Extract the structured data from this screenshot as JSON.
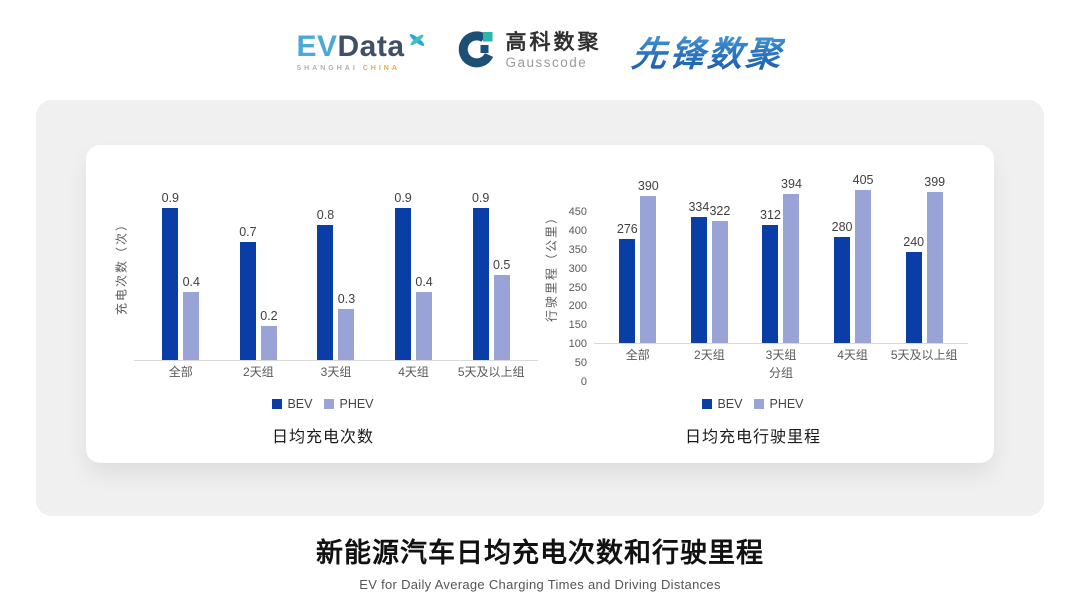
{
  "header": {
    "evdata": {
      "ev": "EV",
      "data": "Data",
      "sub_left": "SHANGHAI",
      "sub_right": "CHINA"
    },
    "gausscode": {
      "cn": "高科数聚",
      "en": "Gausscode"
    },
    "pioneer": {
      "text": "先锋数聚"
    }
  },
  "colors": {
    "bev": "#0b3da6",
    "phev": "#99a3d6",
    "panel_bg": "#f0f0f0",
    "axis_line": "#d9d9d9",
    "tick_text": "#595959",
    "value_text": "#404040"
  },
  "chart_data": [
    {
      "type": "bar",
      "title": "日均充电次数",
      "ylabel": "充电次数（次）",
      "xlabel": "",
      "categories": [
        "全部",
        "2天组",
        "3天组",
        "4天组",
        "5天及以上组"
      ],
      "series": [
        {
          "name": "BEV",
          "color": "#0b3da6",
          "values": [
            0.9,
            0.7,
            0.8,
            0.9,
            0.9
          ]
        },
        {
          "name": "PHEV",
          "color": "#99a3d6",
          "values": [
            0.4,
            0.2,
            0.3,
            0.4,
            0.5
          ]
        }
      ],
      "ylim": [
        0,
        1.0
      ],
      "yticks": [],
      "grid": false,
      "legend_position": "bottom",
      "data_labels": true
    },
    {
      "type": "bar",
      "title": "日均充电行驶里程",
      "ylabel": "行驶里程（公里）",
      "xlabel": "分组",
      "categories": [
        "全部",
        "2天组",
        "3天组",
        "4天组",
        "5天及以上组"
      ],
      "series": [
        {
          "name": "BEV",
          "color": "#0b3da6",
          "values": [
            276,
            334,
            312,
            280,
            240
          ]
        },
        {
          "name": "PHEV",
          "color": "#99a3d6",
          "values": [
            390,
            322,
            394,
            405,
            399
          ]
        }
      ],
      "ylim": [
        0,
        450
      ],
      "yticks": [
        0,
        50,
        100,
        150,
        200,
        250,
        300,
        350,
        400,
        450
      ],
      "grid": false,
      "legend_position": "bottom",
      "data_labels": true
    }
  ],
  "footer": {
    "title": "新能源汽车日均充电次数和行驶里程",
    "subtitle": "EV for Daily Average Charging Times and Driving Distances"
  }
}
